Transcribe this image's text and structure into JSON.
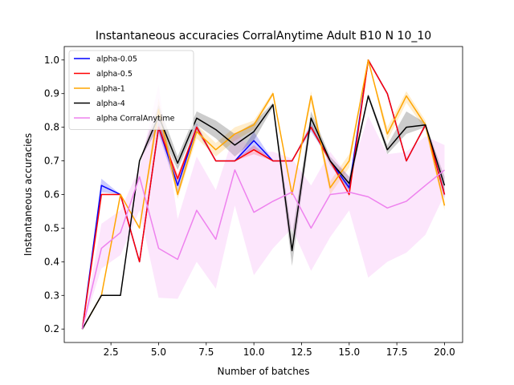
{
  "chart_data": {
    "type": "line",
    "title": "Instantaneous accuracies CorralAnytime Adult B10 N 10_10",
    "xlabel": "Number of batches",
    "ylabel": "Instantaneous accuracies",
    "xlim": [
      0.05,
      20.95
    ],
    "ylim": [
      0.16,
      1.04
    ],
    "xticks": [
      2.5,
      5.0,
      7.5,
      10.0,
      12.5,
      15.0,
      17.5,
      20.0
    ],
    "xtick_labels": [
      "2.5",
      "5.0",
      "7.5",
      "10.0",
      "12.5",
      "15.0",
      "17.5",
      "20.0"
    ],
    "yticks": [
      0.2,
      0.3,
      0.4,
      0.5,
      0.6,
      0.7,
      0.8,
      0.9,
      1.0
    ],
    "ytick_labels": [
      "0.2",
      "0.3",
      "0.4",
      "0.5",
      "0.6",
      "0.7",
      "0.8",
      "0.9",
      "1.0"
    ],
    "grid": false,
    "legend_position": "top-left",
    "x": [
      1,
      2,
      3,
      4,
      5,
      6,
      7,
      8,
      9,
      10,
      11,
      12,
      13,
      14,
      15,
      16,
      17,
      18,
      19,
      20
    ],
    "series": [
      {
        "name": "alpha-0.05",
        "color": "#0000ff",
        "values": [
          0.2,
          0.627,
          0.6,
          0.4,
          0.8,
          0.627,
          0.8,
          0.7,
          0.7,
          0.76,
          0.7,
          0.7,
          0.8,
          0.7,
          0.62,
          1.0,
          0.9,
          0.7,
          0.807,
          0.6
        ],
        "band_lower": [
          0.2,
          0.607,
          0.6,
          0.4,
          0.78,
          0.607,
          0.787,
          0.7,
          0.7,
          0.733,
          0.7,
          0.7,
          0.787,
          0.7,
          0.607,
          1.0,
          0.9,
          0.7,
          0.8,
          0.587
        ],
        "band_upper": [
          0.2,
          0.647,
          0.6,
          0.4,
          0.82,
          0.647,
          0.813,
          0.7,
          0.7,
          0.787,
          0.7,
          0.7,
          0.813,
          0.7,
          0.633,
          1.0,
          0.9,
          0.7,
          0.813,
          0.613
        ]
      },
      {
        "name": "alpha-0.5",
        "color": "#ff0000",
        "values": [
          0.2,
          0.6,
          0.6,
          0.4,
          0.8,
          0.647,
          0.8,
          0.7,
          0.7,
          0.733,
          0.7,
          0.7,
          0.8,
          0.7,
          0.6,
          1.0,
          0.9,
          0.7,
          0.807,
          0.6
        ],
        "band_lower": [
          0.2,
          0.6,
          0.6,
          0.4,
          0.787,
          0.633,
          0.793,
          0.7,
          0.7,
          0.72,
          0.7,
          0.7,
          0.793,
          0.7,
          0.593,
          1.0,
          0.9,
          0.7,
          0.8,
          0.593
        ],
        "band_upper": [
          0.2,
          0.6,
          0.6,
          0.4,
          0.813,
          0.66,
          0.807,
          0.7,
          0.7,
          0.747,
          0.7,
          0.7,
          0.807,
          0.7,
          0.607,
          1.0,
          0.9,
          0.7,
          0.813,
          0.607
        ]
      },
      {
        "name": "alpha-1",
        "color": "#ffa500",
        "values": [
          0.2,
          0.3,
          0.6,
          0.5,
          0.853,
          0.6,
          0.787,
          0.733,
          0.78,
          0.807,
          0.9,
          0.6,
          0.893,
          0.62,
          0.7,
          1.0,
          0.78,
          0.893,
          0.807,
          0.567
        ],
        "band_lower": [
          0.2,
          0.3,
          0.6,
          0.5,
          0.82,
          0.587,
          0.767,
          0.713,
          0.76,
          0.793,
          0.893,
          0.6,
          0.873,
          0.6,
          0.68,
          1.0,
          0.76,
          0.873,
          0.793,
          0.553
        ],
        "band_upper": [
          0.2,
          0.3,
          0.6,
          0.5,
          0.887,
          0.613,
          0.807,
          0.753,
          0.8,
          0.82,
          0.907,
          0.6,
          0.907,
          0.64,
          0.72,
          1.0,
          0.8,
          0.907,
          0.82,
          0.58
        ]
      },
      {
        "name": "alpha-4",
        "color": "#000000",
        "values": [
          0.2,
          0.3,
          0.3,
          0.7,
          0.833,
          0.693,
          0.827,
          0.793,
          0.747,
          0.787,
          0.867,
          0.433,
          0.827,
          0.7,
          0.633,
          0.893,
          0.733,
          0.8,
          0.807,
          0.627
        ],
        "band_lower": [
          0.2,
          0.3,
          0.3,
          0.7,
          0.8,
          0.673,
          0.807,
          0.767,
          0.713,
          0.76,
          0.86,
          0.387,
          0.807,
          0.687,
          0.613,
          0.887,
          0.72,
          0.78,
          0.8,
          0.6
        ],
        "band_upper": [
          0.2,
          0.3,
          0.3,
          0.7,
          0.867,
          0.713,
          0.847,
          0.82,
          0.78,
          0.813,
          0.873,
          0.48,
          0.847,
          0.713,
          0.653,
          0.9,
          0.747,
          0.847,
          0.813,
          0.653
        ]
      },
      {
        "name": "alpha CorralAnytime",
        "color": "#ee82ee",
        "values": [
          0.2,
          0.44,
          0.487,
          0.653,
          0.44,
          0.407,
          0.553,
          0.467,
          0.673,
          0.547,
          0.58,
          0.607,
          0.5,
          0.6,
          0.607,
          0.593,
          0.56,
          0.58,
          0.627,
          0.673
        ],
        "band_lower": [
          0.2,
          0.38,
          0.42,
          0.553,
          0.293,
          0.29,
          0.4,
          0.32,
          0.567,
          0.36,
          0.44,
          0.5,
          0.373,
          0.473,
          0.553,
          0.353,
          0.4,
          0.427,
          0.48,
          0.6
        ],
        "band_upper": [
          0.2,
          0.513,
          0.553,
          0.68,
          0.927,
          0.527,
          0.713,
          0.613,
          0.787,
          0.727,
          0.727,
          0.707,
          0.627,
          0.727,
          0.653,
          0.833,
          0.72,
          0.727,
          0.773,
          0.747
        ]
      }
    ]
  }
}
